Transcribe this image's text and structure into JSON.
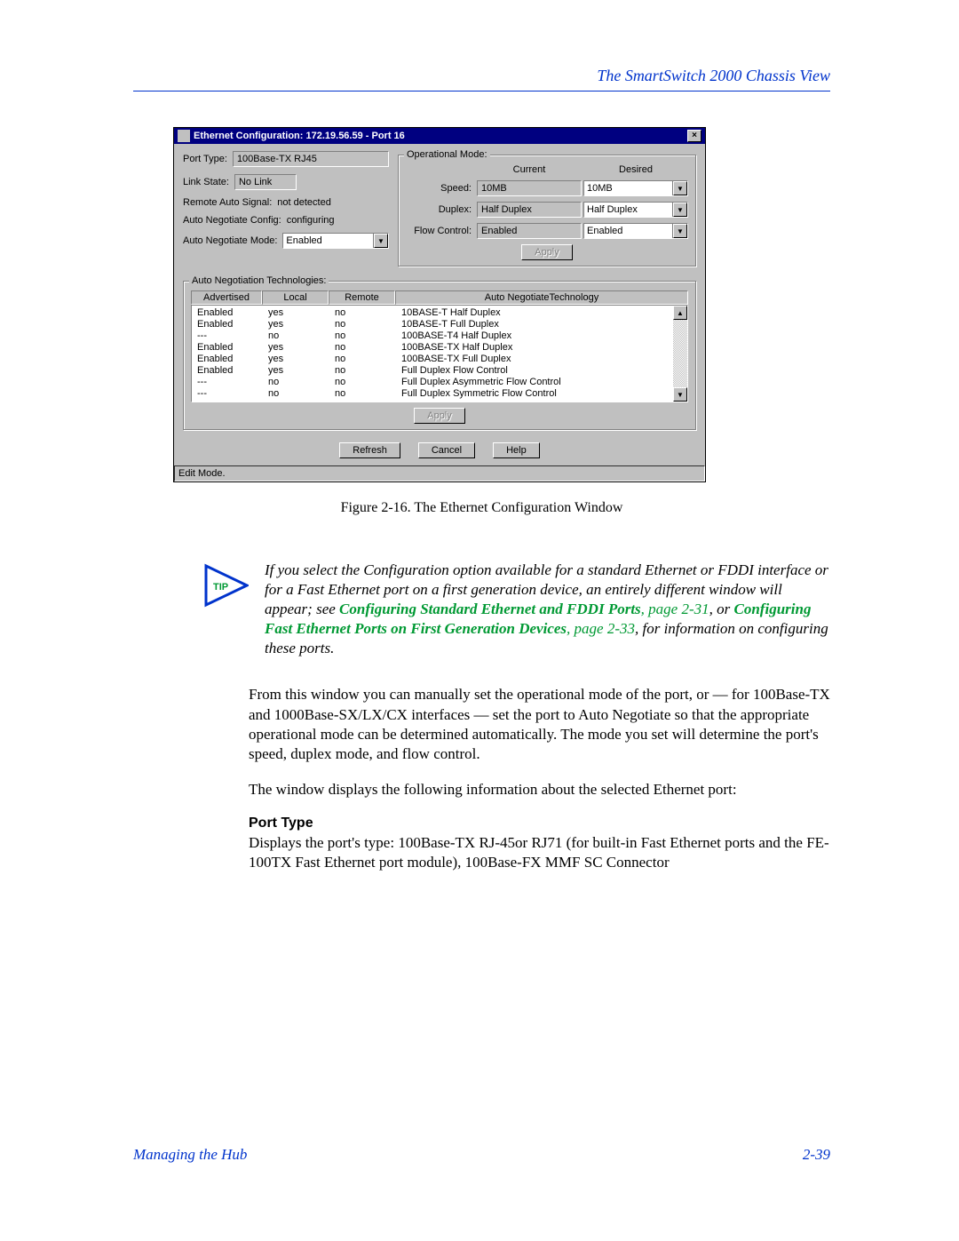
{
  "header": {
    "title": "The SmartSwitch 2000 Chassis View"
  },
  "dialog": {
    "title": "Ethernet Configuration: 172.19.56.59 - Port 16",
    "close": "×",
    "portTypeLabel": "Port Type:",
    "portTypeValue": "100Base-TX RJ45",
    "linkStateLabel": "Link State:",
    "linkStateValue": "No Link",
    "remoteAutoLabel": "Remote Auto Signal:",
    "remoteAutoValue": "not detected",
    "autoNegCfgLabel": "Auto Negotiate Config:",
    "autoNegCfgValue": "configuring",
    "autoNegModeLabel": "Auto Negotiate Mode:",
    "autoNegModeValue": "Enabled",
    "opMode": {
      "title": "Operational Mode:",
      "hdrCurrent": "Current",
      "hdrDesired": "Desired",
      "speedLabel": "Speed:",
      "speedCurrent": "10MB",
      "speedDesired": "10MB",
      "duplexLabel": "Duplex:",
      "duplexCurrent": "Half Duplex",
      "duplexDesired": "Half Duplex",
      "flowLabel": "Flow Control:",
      "flowCurrent": "Enabled",
      "flowDesired": "Enabled",
      "apply": "Apply"
    },
    "tech": {
      "title": "Auto Negotiation Technologies:",
      "h1": "Advertised",
      "h2": "Local",
      "h3": "Remote",
      "h4": "Auto NegotiateTechnology",
      "rows": [
        {
          "a": "Enabled",
          "l": "yes",
          "r": "no",
          "t": "10BASE-T Half Duplex"
        },
        {
          "a": "Enabled",
          "l": "yes",
          "r": "no",
          "t": "10BASE-T Full Duplex"
        },
        {
          "a": "---",
          "l": "no",
          "r": "no",
          "t": "100BASE-T4 Half Duplex"
        },
        {
          "a": "Enabled",
          "l": "yes",
          "r": "no",
          "t": "100BASE-TX Half Duplex"
        },
        {
          "a": "Enabled",
          "l": "yes",
          "r": "no",
          "t": "100BASE-TX Full Duplex"
        },
        {
          "a": "Enabled",
          "l": "yes",
          "r": "no",
          "t": "Full Duplex Flow Control"
        },
        {
          "a": "---",
          "l": "no",
          "r": "no",
          "t": "Full Duplex Asymmetric Flow Control"
        },
        {
          "a": "---",
          "l": "no",
          "r": "no",
          "t": "Full Duplex Symmetric Flow Control"
        }
      ],
      "apply": "Apply"
    },
    "refresh": "Refresh",
    "cancel": "Cancel",
    "help": "Help",
    "status": "Edit Mode."
  },
  "caption": "Figure 2-16. The Ethernet Configuration Window",
  "tip": {
    "label": "TIP",
    "p1a": "If you select the Configuration option available for a standard Ethernet or FDDI interface or for a Fast Ethernet port on a first generation device, an entirely different window will appear; see ",
    "link1": "Configuring Standard Ethernet and FDDI Ports",
    "page1": ", page 2-31",
    "p1b": ", or ",
    "link2": "Configuring Fast Ethernet Ports on First Generation Devices",
    "page2": ", page 2-33",
    "p1c": ", for information on configuring these ports."
  },
  "para1": "From this window you can manually set the operational mode of the port, or — for 100Base-TX and 1000Base-SX/LX/CX interfaces — set the port to Auto Negotiate so that the appropriate operational mode can be determined automatically. The mode you set will determine the port's speed, duplex mode, and flow control.",
  "para2": "The window displays the following information about the selected Ethernet port:",
  "sectionHead": "Port Type",
  "para3": "Displays the port's type: 100Base-TX RJ-45or RJ71 (for built-in Fast Ethernet ports and the FE-100TX Fast Ethernet port module), 100Base-FX MMF SC Connector",
  "footer": {
    "left": "Managing the Hub",
    "right": "2-39"
  }
}
